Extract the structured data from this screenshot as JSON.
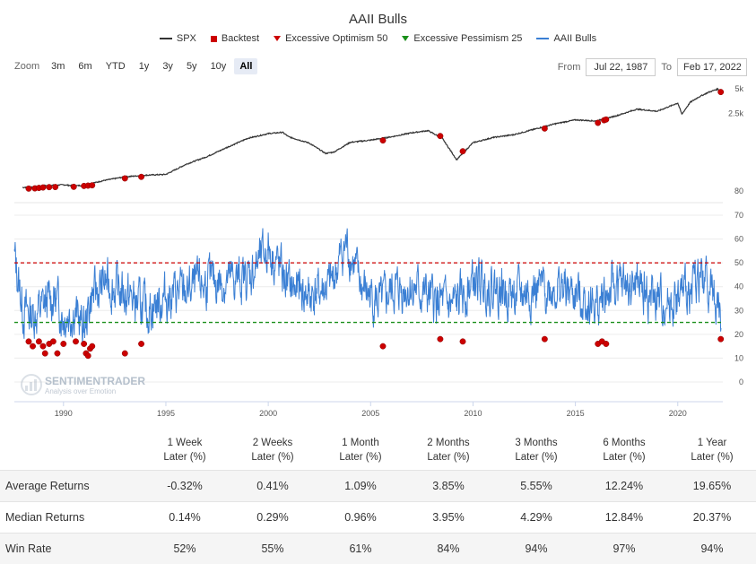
{
  "title": "AAII Bulls",
  "legend": [
    {
      "name": "SPX",
      "color": "#333333",
      "symbol": "line"
    },
    {
      "name": "Backtest",
      "color": "#cc0000",
      "symbol": "square"
    },
    {
      "name": "Excessive Optimism 50",
      "color": "#cc0000",
      "symbol": "triangle"
    },
    {
      "name": "Excessive Pessimism 25",
      "color": "#1a8f1a",
      "symbol": "triangle"
    },
    {
      "name": "AAII Bulls",
      "color": "#3a7fd4",
      "symbol": "line"
    }
  ],
  "zoom": {
    "label": "Zoom",
    "options": [
      "3m",
      "6m",
      "YTD",
      "1y",
      "3y",
      "5y",
      "10y",
      "All"
    ],
    "active": "All"
  },
  "range": {
    "from_label": "From",
    "from": "Jul 22, 1987",
    "to_label": "To",
    "to": "Feb 17, 2022"
  },
  "watermark": {
    "name": "SENTIMENTRADER",
    "tagline": "Analysis over Emotion"
  },
  "chart_data": [
    {
      "type": "line",
      "series": [
        {
          "name": "SPX",
          "color": "#333333"
        }
      ],
      "y_scale": "log",
      "y_ticks": [
        "80",
        "2.5k",
        "5k"
      ],
      "x_ticks": [
        "1990",
        "1995",
        "2000",
        "2005",
        "2010",
        "2015",
        "2020"
      ],
      "spx_path": [
        [
          1988.0,
          330
        ],
        [
          1988.5,
          335
        ],
        [
          1989.0,
          345
        ],
        [
          1989.5,
          350
        ],
        [
          1990.0,
          355
        ],
        [
          1990.5,
          345
        ],
        [
          1991.0,
          350
        ],
        [
          1992.0,
          400
        ],
        [
          1993.0,
          440
        ],
        [
          1994.0,
          460
        ],
        [
          1995.0,
          470
        ],
        [
          1996.0,
          620
        ],
        [
          1997.0,
          760
        ],
        [
          1998.0,
          980
        ],
        [
          1999.0,
          1250
        ],
        [
          2000.0,
          1420
        ],
        [
          2000.7,
          1470
        ],
        [
          2001.0,
          1300
        ],
        [
          2002.0,
          1100
        ],
        [
          2002.8,
          830
        ],
        [
          2003.2,
          860
        ],
        [
          2004.0,
          1120
        ],
        [
          2005.0,
          1190
        ],
        [
          2006.0,
          1300
        ],
        [
          2007.0,
          1450
        ],
        [
          2007.8,
          1540
        ],
        [
          2008.5,
          1250
        ],
        [
          2009.2,
          700
        ],
        [
          2010.0,
          1110
        ],
        [
          2011.0,
          1280
        ],
        [
          2012.0,
          1380
        ],
        [
          2013.0,
          1600
        ],
        [
          2014.0,
          1850
        ],
        [
          2015.0,
          2060
        ],
        [
          2016.0,
          2000
        ],
        [
          2017.0,
          2300
        ],
        [
          2018.0,
          2750
        ],
        [
          2019.0,
          2600
        ],
        [
          2020.0,
          3250
        ],
        [
          2020.2,
          2400
        ],
        [
          2020.6,
          3300
        ],
        [
          2021.0,
          3800
        ],
        [
          2021.5,
          4350
        ],
        [
          2021.95,
          4750
        ],
        [
          2022.13,
          4380
        ]
      ],
      "backtest_points": [
        [
          1988.3,
          320
        ],
        [
          1988.6,
          322
        ],
        [
          1988.8,
          326
        ],
        [
          1989.0,
          330
        ],
        [
          1989.3,
          333
        ],
        [
          1989.6,
          334
        ],
        [
          1990.5,
          336
        ],
        [
          1991.0,
          344
        ],
        [
          1991.2,
          347
        ],
        [
          1991.4,
          350
        ],
        [
          1993.0,
          422
        ],
        [
          1993.8,
          440
        ],
        [
          2005.6,
          1180
        ],
        [
          2008.4,
          1330
        ],
        [
          2009.5,
          880
        ],
        [
          2013.5,
          1630
        ],
        [
          2016.1,
          1900
        ],
        [
          2016.4,
          2040
        ],
        [
          2016.5,
          2080
        ],
        [
          2022.1,
          4380
        ]
      ]
    },
    {
      "type": "line",
      "series": [
        {
          "name": "AAII Bulls",
          "color": "#3a7fd4"
        }
      ],
      "ylim": [
        0,
        70
      ],
      "y_ticks": [
        0,
        10,
        20,
        30,
        40,
        50,
        60,
        70
      ],
      "thresholds": [
        {
          "name": "Excessive Optimism 50",
          "value": 50,
          "color": "#cc0000"
        },
        {
          "name": "Excessive Pessimism 25",
          "value": 25,
          "color": "#1a8f1a"
        }
      ],
      "anchors": [
        [
          1987.6,
          52
        ],
        [
          1988.0,
          30
        ],
        [
          1988.5,
          28
        ],
        [
          1989.0,
          32
        ],
        [
          1989.5,
          36
        ],
        [
          1990.0,
          28
        ],
        [
          1990.5,
          30
        ],
        [
          1991.0,
          22
        ],
        [
          1991.3,
          35
        ],
        [
          1992.0,
          42
        ],
        [
          1993.0,
          37
        ],
        [
          1994.0,
          30
        ],
        [
          1995.0,
          36
        ],
        [
          1996.0,
          38
        ],
        [
          1997.0,
          42
        ],
        [
          1998.0,
          42
        ],
        [
          1999.0,
          44
        ],
        [
          2000.0,
          56
        ],
        [
          2001.0,
          40
        ],
        [
          2002.0,
          36
        ],
        [
          2003.0,
          40
        ],
        [
          2003.8,
          58
        ],
        [
          2004.5,
          40
        ],
        [
          2005.5,
          32
        ],
        [
          2006.0,
          38
        ],
        [
          2007.0,
          40
        ],
        [
          2008.0,
          34
        ],
        [
          2009.0,
          31
        ],
        [
          2010.0,
          42
        ],
        [
          2011.0,
          40
        ],
        [
          2012.0,
          36
        ],
        [
          2013.0,
          38
        ],
        [
          2014.0,
          40
        ],
        [
          2015.0,
          36
        ],
        [
          2016.0,
          32
        ],
        [
          2017.0,
          40
        ],
        [
          2018.0,
          40
        ],
        [
          2019.0,
          33
        ],
        [
          2020.0,
          34
        ],
        [
          2021.0,
          44
        ],
        [
          2021.5,
          42
        ],
        [
          2022.0,
          30
        ],
        [
          2022.13,
          25
        ]
      ],
      "noise_amplitude": 11,
      "backtest_points": [
        [
          1988.3,
          17
        ],
        [
          1988.5,
          15
        ],
        [
          1988.8,
          17
        ],
        [
          1989.0,
          15
        ],
        [
          1989.1,
          12
        ],
        [
          1989.3,
          16
        ],
        [
          1989.5,
          17
        ],
        [
          1989.7,
          12
        ],
        [
          1990.0,
          16
        ],
        [
          1990.6,
          17
        ],
        [
          1991.0,
          16
        ],
        [
          1991.1,
          12
        ],
        [
          1991.2,
          11
        ],
        [
          1991.3,
          14
        ],
        [
          1991.4,
          15
        ],
        [
          1993.0,
          12
        ],
        [
          1993.8,
          16
        ],
        [
          2005.6,
          15
        ],
        [
          2008.4,
          18
        ],
        [
          2009.5,
          17
        ],
        [
          2013.5,
          18
        ],
        [
          2016.1,
          16
        ],
        [
          2016.3,
          17
        ],
        [
          2016.5,
          16
        ],
        [
          2022.1,
          18
        ]
      ]
    }
  ],
  "stats_table": {
    "headers": [
      "1 Week\nLater (%)",
      "2 Weeks\nLater (%)",
      "1 Month\nLater (%)",
      "2 Months\nLater (%)",
      "3 Months\nLater (%)",
      "6 Months\nLater (%)",
      "1 Year\nLater (%)"
    ],
    "rows": [
      {
        "label": "Average Returns",
        "values": [
          "-0.32%",
          "0.41%",
          "1.09%",
          "3.85%",
          "5.55%",
          "12.24%",
          "19.65%"
        ]
      },
      {
        "label": "Median Returns",
        "values": [
          "0.14%",
          "0.29%",
          "0.96%",
          "3.95%",
          "4.29%",
          "12.84%",
          "20.37%"
        ]
      },
      {
        "label": "Win Rate",
        "values": [
          "52%",
          "55%",
          "61%",
          "84%",
          "94%",
          "97%",
          "94%"
        ]
      }
    ]
  }
}
